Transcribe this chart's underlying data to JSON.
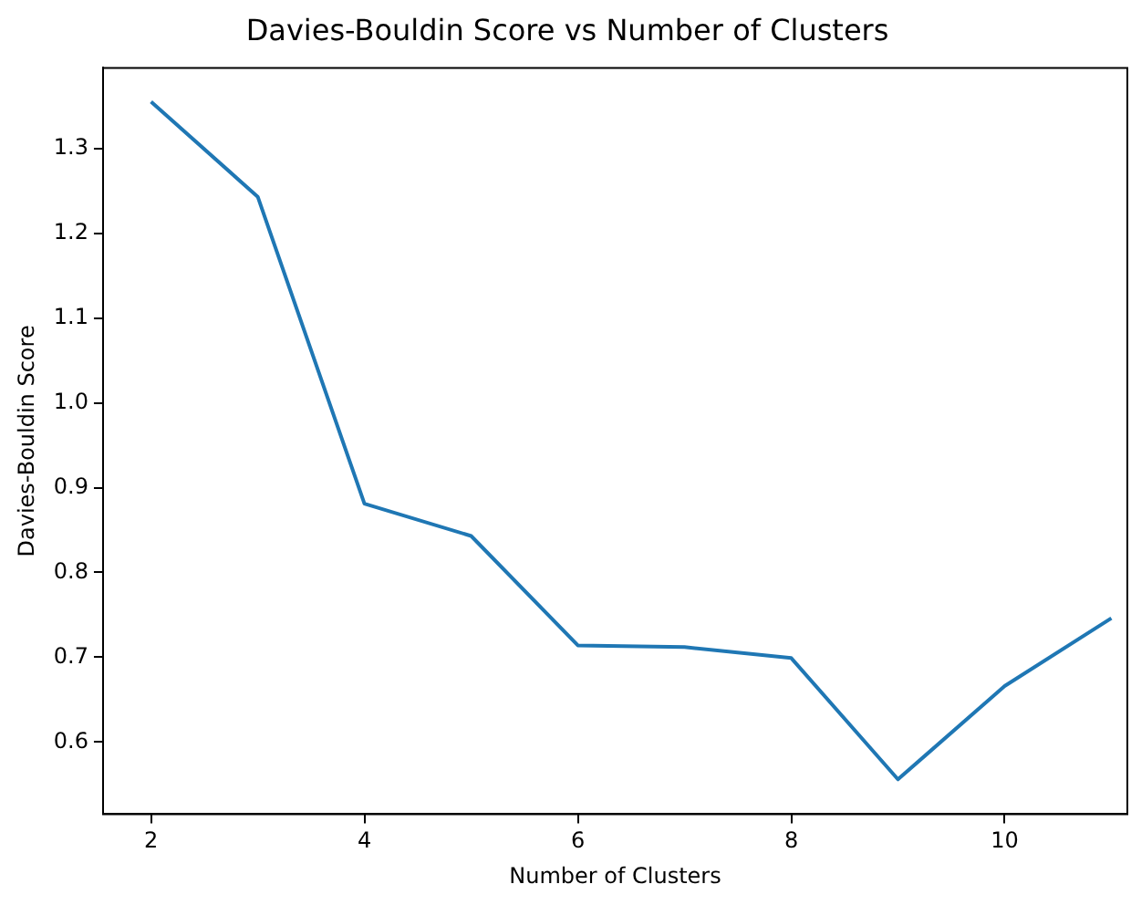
{
  "chart_data": {
    "type": "line",
    "title": "Davies-Bouldin Score vs Number of Clusters",
    "xlabel": "Number of Clusters",
    "ylabel": "Davies-Bouldin Score",
    "x": [
      2,
      3,
      4,
      5,
      6,
      7,
      8,
      9,
      10,
      11
    ],
    "series": [
      {
        "color": "#1f77b4",
        "values": [
          1.355,
          1.243,
          0.881,
          0.843,
          0.714,
          0.712,
          0.699,
          0.556,
          0.666,
          0.746
        ]
      }
    ],
    "xlim": [
      1.55,
      11.15
    ],
    "xticks": [
      2,
      4,
      6,
      8,
      10
    ],
    "ylim": [
      0.515,
      1.395
    ],
    "yticks": [
      0.6,
      0.7,
      0.8,
      0.9,
      {
        "value": 1,
        "label": "1.0"
      },
      1.1,
      1.2,
      1.3
    ],
    "grid": false,
    "legend": false,
    "marker": "none",
    "line_style": "solid"
  }
}
